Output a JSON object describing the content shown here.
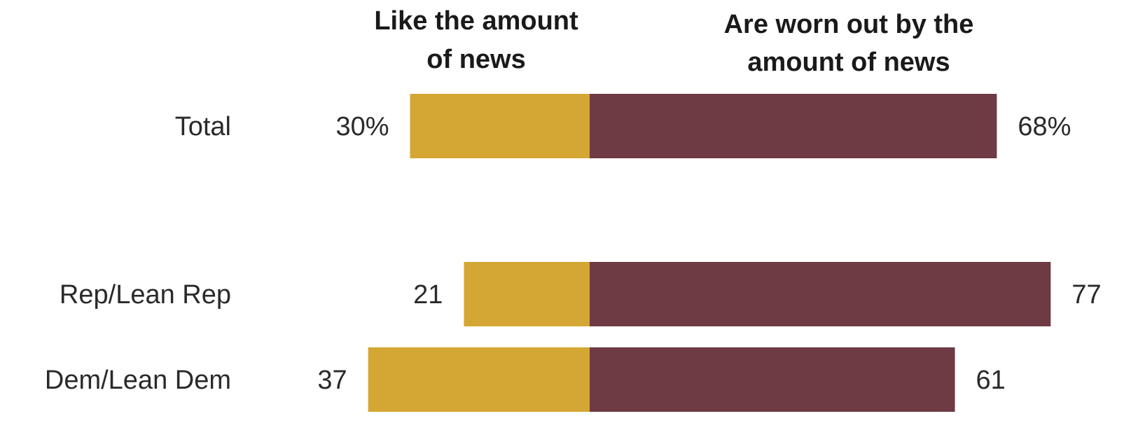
{
  "chart_data": {
    "type": "bar",
    "orientation": "horizontal-diverging",
    "categories": [
      "Total",
      "Rep/Lean Rep",
      "Dem/Lean Dem"
    ],
    "series": [
      {
        "name": "Like the amount of news",
        "header_lines": [
          "Like the amount",
          "of news"
        ],
        "values": [
          30,
          21,
          37
        ],
        "value_labels": [
          "30%",
          "21",
          "37"
        ],
        "color": "#d4a633"
      },
      {
        "name": "Are worn out by the amount of news",
        "header_lines": [
          "Are worn out by the",
          "amount of news"
        ],
        "values": [
          68,
          77,
          61
        ],
        "value_labels": [
          "68%",
          "77",
          "61"
        ],
        "color": "#6e3a44"
      }
    ],
    "value_unit": "%",
    "grid": false,
    "legend": "column headers above bars"
  }
}
